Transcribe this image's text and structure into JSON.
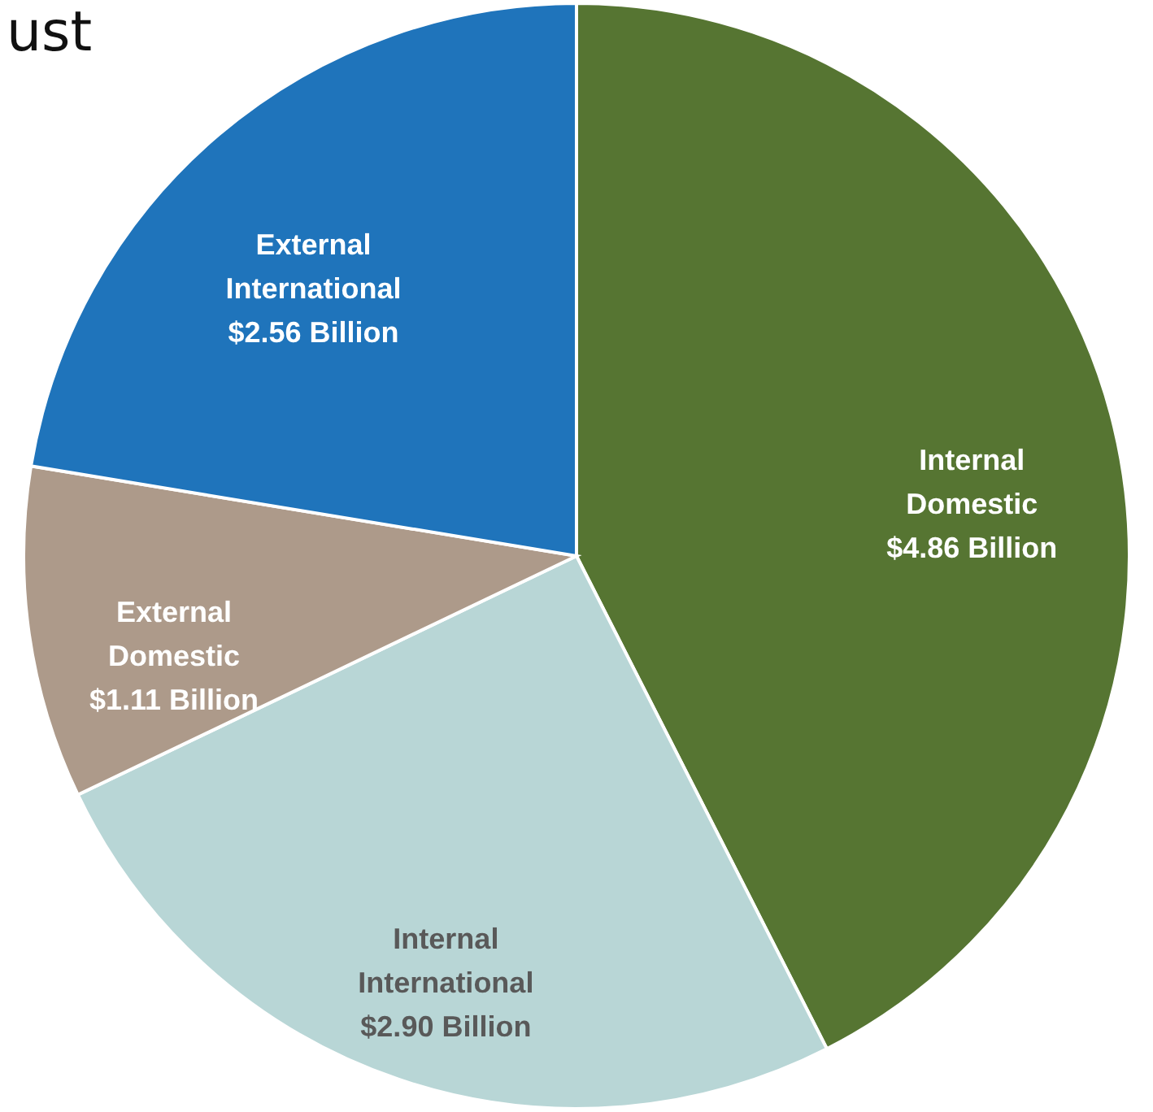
{
  "chart_data": {
    "type": "pie",
    "categories": [
      "Internal Domestic",
      "Internal International",
      "External Domestic",
      "External International"
    ],
    "values": [
      4.86,
      2.9,
      1.11,
      2.56
    ],
    "value_labels": [
      "$4.86 Billion",
      "$2.90 Billion",
      "$1.11 Billion",
      "$2.56 Billion"
    ],
    "colors": [
      "#567532",
      "#b8d6d6",
      "#ad9a8a",
      "#1f74bb"
    ],
    "annotations": [
      "ust"
    ]
  }
}
